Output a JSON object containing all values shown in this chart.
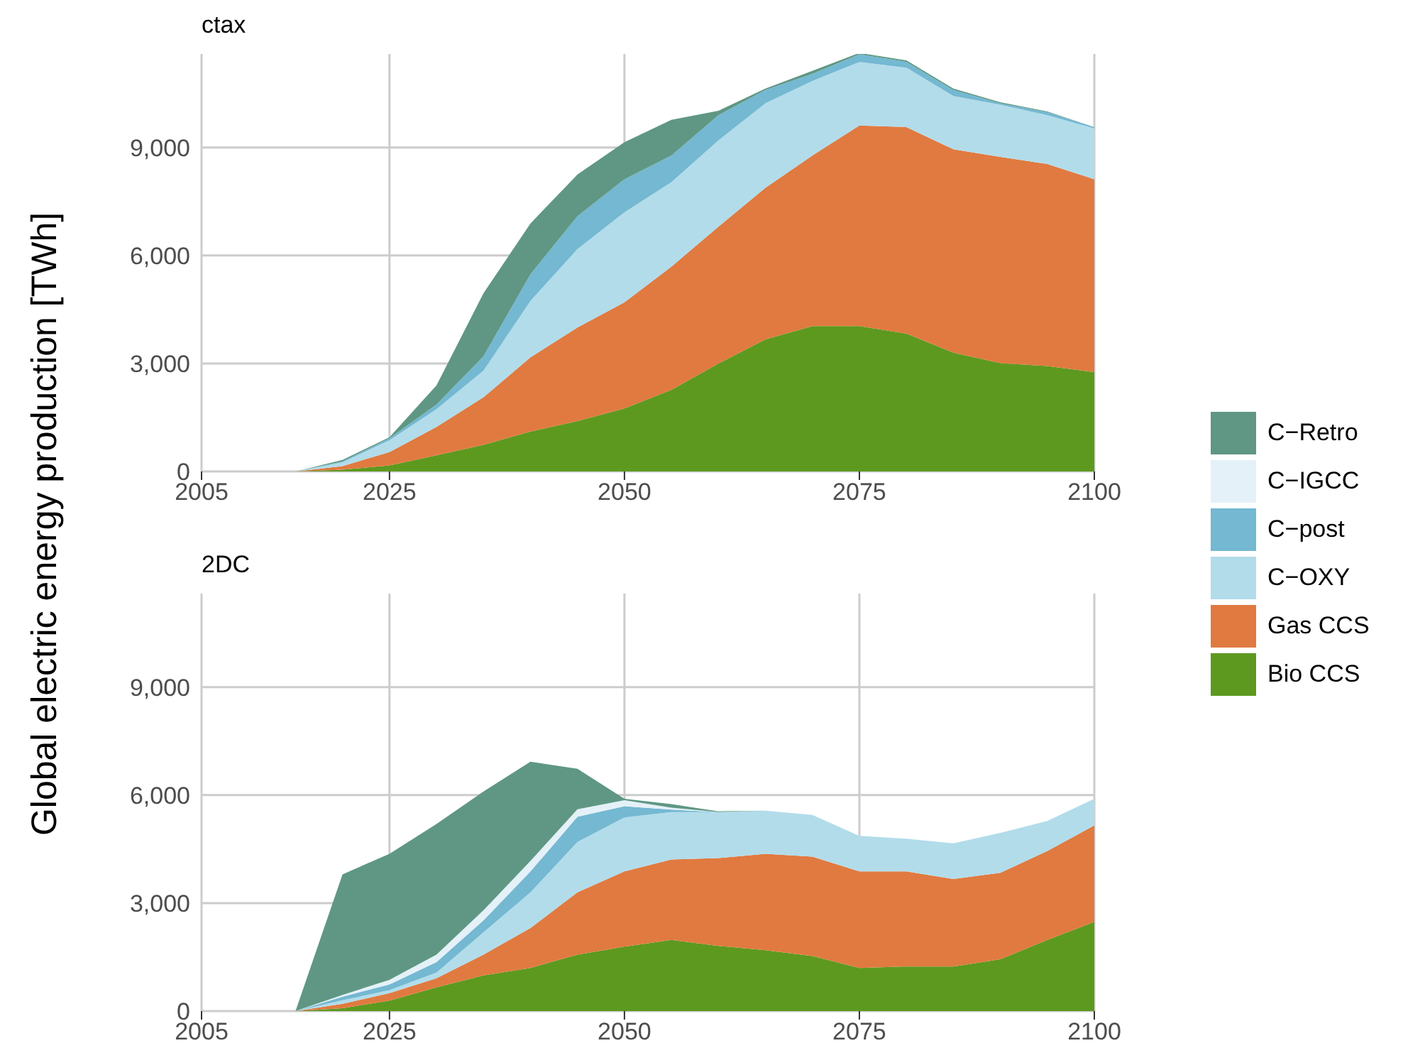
{
  "chart_data": [
    {
      "type": "area",
      "title": "ctax",
      "ylabel": "Global electric energy production [TWh]",
      "stacked": true,
      "grid": true,
      "x": [
        2015,
        2020,
        2025,
        2030,
        2035,
        2040,
        2045,
        2050,
        2055,
        2060,
        2065,
        2070,
        2075,
        2080,
        2085,
        2090,
        2095,
        2100
      ],
      "xlim": [
        2005,
        2100
      ],
      "xticks": [
        2005,
        2025,
        2050,
        2075,
        2100
      ],
      "ylim": [
        0,
        11600
      ],
      "yticks": [
        0,
        {
          "value": 3000,
          "label": "3,000"
        },
        {
          "value": 6000,
          "label": "6,000"
        },
        {
          "value": 9000,
          "label": "9,000"
        }
      ],
      "series": [
        {
          "color": "#5d991f",
          "values": [
            0,
            50,
            170,
            450,
            740,
            1110,
            1400,
            1750,
            2270,
            3000,
            3670,
            4040,
            4040,
            3830,
            3300,
            3010,
            2930,
            2760
          ]
        },
        {
          "color": "#e07a40",
          "values": [
            0,
            100,
            370,
            790,
            1320,
            2060,
            2600,
            2950,
            3420,
            3800,
            4210,
            4740,
            5570,
            5740,
            5650,
            5730,
            5610,
            5360
          ]
        },
        {
          "color": "#b2dcea",
          "values": [
            0,
            100,
            330,
            490,
            740,
            1570,
            2180,
            2500,
            2350,
            2400,
            2350,
            2070,
            1770,
            1650,
            1480,
            1450,
            1360,
            1410
          ]
        },
        {
          "color": "#74b8d2",
          "values": [
            0,
            30,
            50,
            130,
            400,
            740,
            910,
            920,
            740,
            700,
            370,
            200,
            210,
            160,
            170,
            40,
            80,
            40
          ]
        },
        {
          "color": "#e4f1f8",
          "values": [
            null,
            null,
            null,
            null,
            null,
            null,
            null,
            null,
            null,
            null,
            null,
            null,
            null,
            null,
            null,
            null,
            null,
            null
          ]
        },
        {
          "color": "#5f9784",
          "values": [
            0,
            40,
            30,
            530,
            1750,
            1410,
            1160,
            1030,
            990,
            120,
            40,
            80,
            40,
            40,
            40,
            30,
            20,
            0
          ]
        }
      ]
    },
    {
      "type": "area",
      "title": "2DC",
      "stacked": true,
      "grid": true,
      "legend": "right",
      "x": [
        2015,
        2020,
        2025,
        2030,
        2035,
        2040,
        2045,
        2050,
        2055,
        2060,
        2065,
        2070,
        2075,
        2080,
        2085,
        2090,
        2095,
        2100
      ],
      "xlim": [
        2005,
        2100
      ],
      "xticks": [
        2005,
        2025,
        2050,
        2075,
        2100
      ],
      "ylim": [
        0,
        11600
      ],
      "yticks": [
        0,
        {
          "value": 3000,
          "label": "3,000"
        },
        {
          "value": 6000,
          "label": "6,000"
        },
        {
          "value": 9000,
          "label": "9,000"
        }
      ],
      "series": [
        {
          "name": "Bio CCS",
          "color": "#5d991f",
          "values": [
            0,
            80,
            290,
            660,
            990,
            1200,
            1570,
            1790,
            1980,
            1810,
            1690,
            1530,
            1200,
            1240,
            1240,
            1440,
            1980,
            2480
          ]
        },
        {
          "name": "Gas CCS",
          "color": "#e07a40",
          "values": [
            0,
            120,
            210,
            250,
            580,
            1110,
            1730,
            2090,
            2230,
            2440,
            2680,
            2760,
            2680,
            2640,
            2430,
            2400,
            2470,
            2680
          ]
        },
        {
          "name": "C−OXY",
          "color": "#b2dcea",
          "values": [
            0,
            100,
            80,
            160,
            620,
            990,
            1400,
            1500,
            1320,
            1280,
            1200,
            1160,
            990,
            910,
            990,
            1110,
            830,
            740
          ]
        },
        {
          "name": "C−post",
          "color": "#74b8d2",
          "values": [
            0,
            100,
            160,
            290,
            330,
            580,
            700,
            310,
            70,
            0,
            null,
            null,
            null,
            null,
            null,
            null,
            null,
            null
          ]
        },
        {
          "name": "C−IGCC",
          "color": "#e4f1f8",
          "values": [
            0,
            50,
            130,
            210,
            280,
            290,
            210,
            170,
            50,
            0,
            null,
            null,
            null,
            null,
            null,
            null,
            null,
            null
          ]
        },
        {
          "name": "C−Retro",
          "color": "#5f9784",
          "values": [
            0,
            3350,
            3500,
            3630,
            3300,
            2760,
            1120,
            40,
            100,
            20,
            0,
            0,
            0,
            0,
            0,
            0,
            0,
            0
          ]
        }
      ]
    }
  ]
}
